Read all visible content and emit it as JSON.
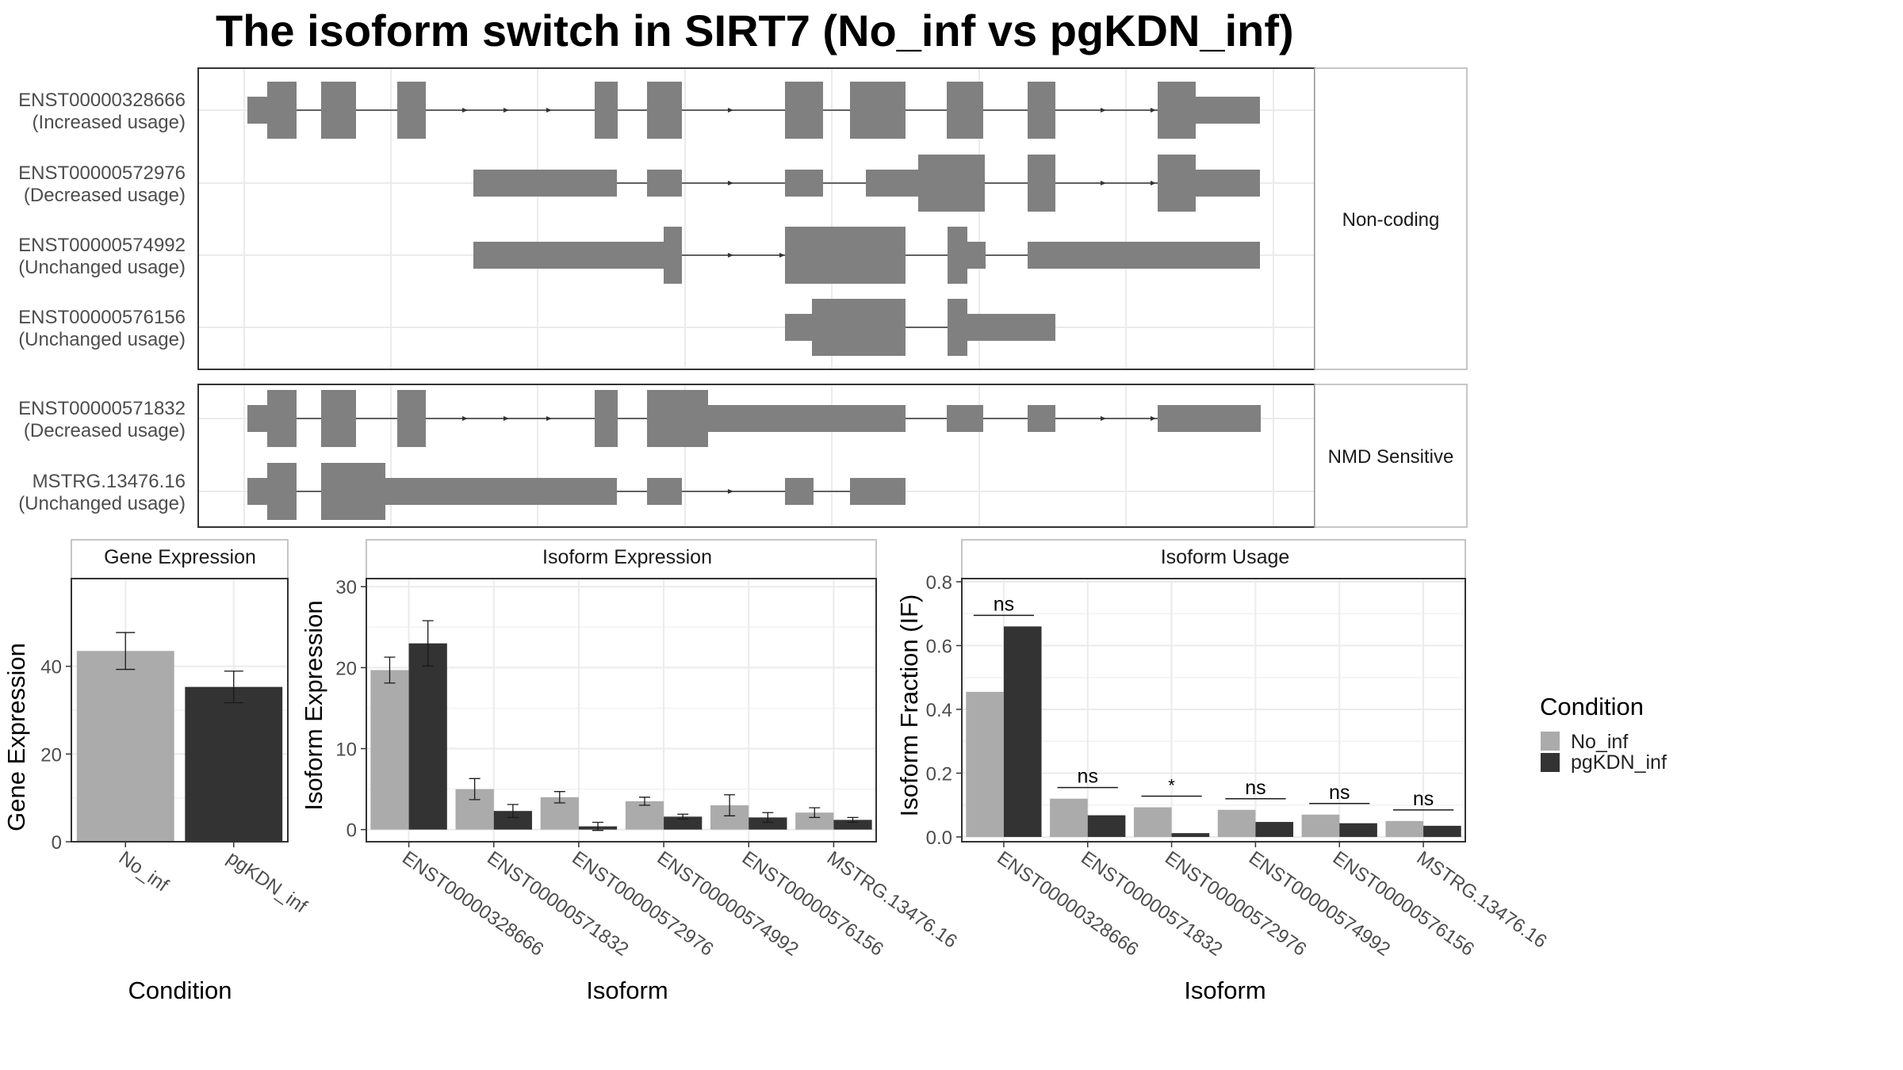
{
  "title": "The isoform switch in SIRT7 (No_inf vs pgKDN_inf)",
  "colors": {
    "no_inf": "#ababab",
    "pgkdn_inf": "#333333",
    "exon": "#808080",
    "grid": "#ebebeb",
    "border": "#333333"
  },
  "structure": {
    "panels": [
      {
        "label": "Non-coding",
        "isoforms": [
          {
            "id": "ENST00000328666",
            "usage": "(Increased usage)"
          },
          {
            "id": "ENST00000572976",
            "usage": "(Decreased usage)"
          },
          {
            "id": "ENST00000574992",
            "usage": "(Unchanged usage)"
          },
          {
            "id": "ENST00000576156",
            "usage": "(Unchanged usage)"
          }
        ]
      },
      {
        "label": "NMD Sensitive",
        "isoforms": [
          {
            "id": "ENST00000571832",
            "usage": "(Decreased usage)"
          },
          {
            "id": "MSTRG.13476.16",
            "usage": "(Unchanged usage)"
          }
        ]
      }
    ]
  },
  "legend": {
    "title": "Condition",
    "items": [
      "No_inf",
      "pgKDN_inf"
    ]
  },
  "chart_data": [
    {
      "type": "bar",
      "panel_title": "Gene Expression",
      "categories": [
        "No_inf",
        "pgKDN_inf"
      ],
      "values": [
        43.5,
        35.3
      ],
      "errors": [
        4.2,
        3.6
      ],
      "xlabel": "Condition",
      "ylabel": "Gene Expression",
      "ylim": [
        0,
        60
      ],
      "yticks": [
        0,
        20,
        40
      ]
    },
    {
      "type": "bar",
      "panel_title": "Isoform Expression",
      "categories": [
        "ENST00000328666",
        "ENST00000571832",
        "ENST00000572976",
        "ENST00000574992",
        "ENST00000576156",
        "MSTRG.13476.16"
      ],
      "series": [
        {
          "name": "No_inf",
          "values": [
            19.7,
            5.0,
            4.0,
            3.5,
            3.0,
            2.1
          ],
          "errors": [
            1.6,
            1.3,
            0.7,
            0.5,
            1.3,
            0.6
          ]
        },
        {
          "name": "pgKDN_inf",
          "values": [
            23.0,
            2.3,
            0.4,
            1.6,
            1.5,
            1.2
          ],
          "errors": [
            2.8,
            0.8,
            0.5,
            0.3,
            0.6,
            0.3
          ]
        }
      ],
      "xlabel": "Isoform",
      "ylabel": "Isoform Expression",
      "ylim": [
        -1.5,
        31
      ],
      "yticks": [
        0,
        10,
        20,
        30
      ]
    },
    {
      "type": "bar",
      "panel_title": "Isoform Usage",
      "categories": [
        "ENST00000328666",
        "ENST00000571832",
        "ENST00000572976",
        "ENST00000574992",
        "ENST00000576156",
        "MSTRG.13476.16"
      ],
      "series": [
        {
          "name": "No_inf",
          "values": [
            0.455,
            0.12,
            0.093,
            0.085,
            0.07,
            0.05
          ]
        },
        {
          "name": "pgKDN_inf",
          "values": [
            0.66,
            0.068,
            0.012,
            0.047,
            0.043,
            0.035
          ]
        }
      ],
      "significance": [
        "ns",
        "ns",
        "*",
        "ns",
        "ns",
        "ns"
      ],
      "xlabel": "Isoform",
      "ylabel": "Isoform Fraction (IF)",
      "ylim": [
        -0.015,
        0.81
      ],
      "yticks": [
        0.0,
        0.2,
        0.4,
        0.6,
        0.8
      ]
    }
  ]
}
